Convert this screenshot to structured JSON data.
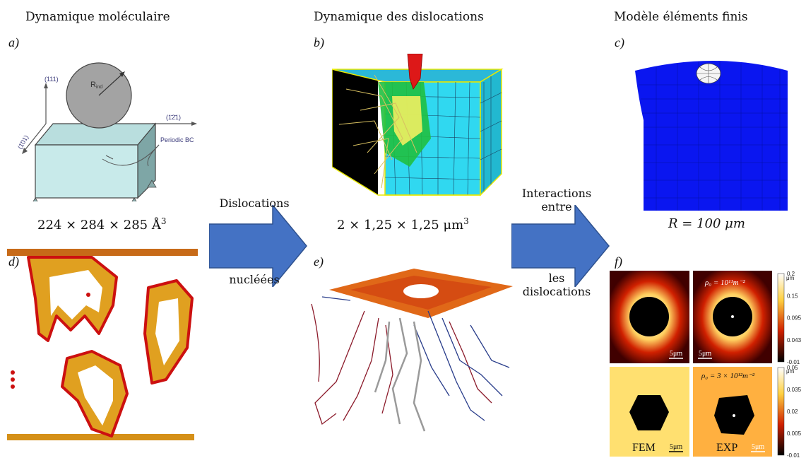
{
  "columns": {
    "md": "Dynamique moléculaire",
    "dd": "Dynamique des dislocations",
    "fem": "Modèle éléments finis"
  },
  "panels": {
    "a": "a)",
    "b": "b)",
    "c": "c)",
    "d": "d)",
    "e": "e)",
    "f": "f)"
  },
  "dimensions": {
    "md": "224 × 284 × 285 Å",
    "md_exp": "3",
    "dd": "2 × 1,25 × 1,25 μm",
    "dd_exp": "3",
    "fem": "R = 100 μm"
  },
  "arrows": {
    "left_top": "Dislocations",
    "left_bottom": "nucléées",
    "right_top_1": "Interactions",
    "right_top_2": "entre",
    "right_bottom_1": "les",
    "right_bottom_2": "dislocations"
  },
  "sketch_a": {
    "axis_111": "(111)",
    "axis_121": "(1̄2̄1)",
    "axis_101": "(1̄01)",
    "radius": "R",
    "radius_sub": "ind",
    "periodic": "Periodic BC"
  },
  "panel_f": {
    "rho_top": "ρ₀ = 10¹¹m⁻²",
    "rho_bottom": "ρ₀ = 3 × 10¹²m⁻²",
    "scale": "5μm",
    "cb_top": [
      "0.2",
      "0.15",
      "0.095",
      "0.043",
      "-0.01"
    ],
    "cb_bottom": [
      "0.05",
      "0.035",
      "0.02",
      "0.005",
      "-0.01"
    ],
    "cb_unit": "μm",
    "label_fem": "FEM",
    "label_exp": "EXP"
  }
}
